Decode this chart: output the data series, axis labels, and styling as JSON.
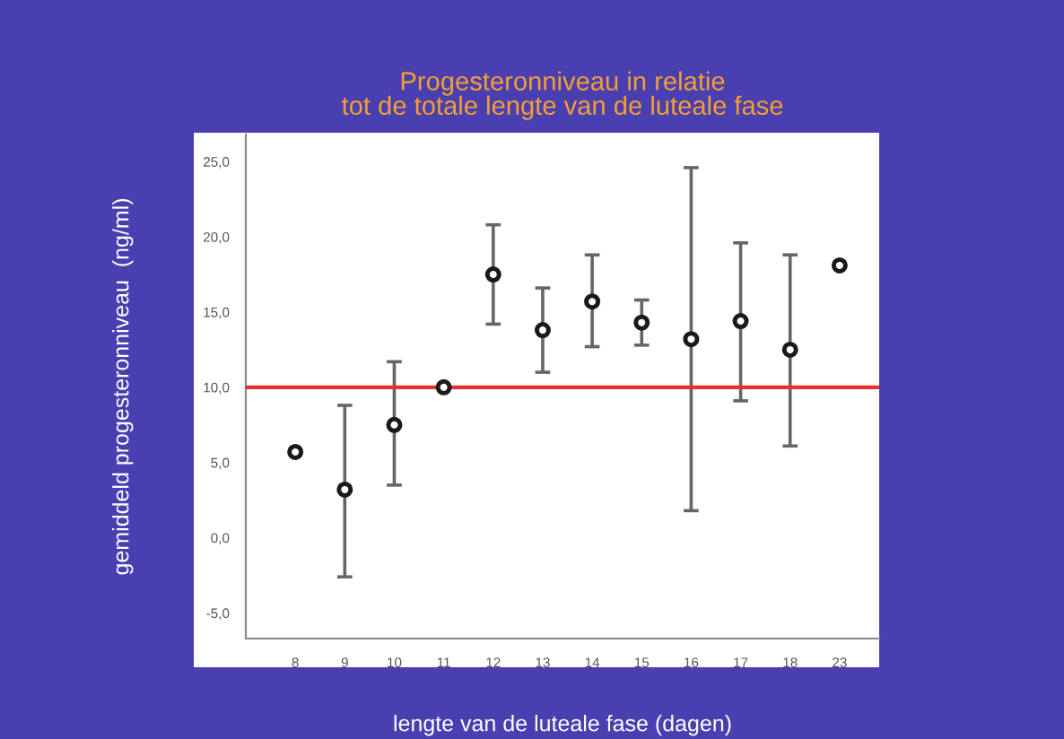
{
  "chart_data": {
    "type": "scatter",
    "title": "Progesteronniveau in relatie\ntot de totale lengte van de luteale fase",
    "xlabel": "lengte van de luteale fase (dagen)",
    "ylabel": "gemiddeld progesteronniveau  (ng/ml)",
    "categories": [
      "8",
      "9",
      "10",
      "11",
      "12",
      "13",
      "14",
      "15",
      "16",
      "17",
      "18",
      "23"
    ],
    "series": [
      {
        "color": "#1a1a1a",
        "values": [
          5.7,
          3.2,
          7.5,
          10.0,
          17.5,
          13.8,
          15.7,
          14.3,
          13.2,
          14.4,
          12.5,
          18.1
        ],
        "errors": [
          null,
          [
            -2.6,
            8.8
          ],
          [
            3.5,
            11.7
          ],
          null,
          [
            14.2,
            20.8
          ],
          [
            11.0,
            16.6
          ],
          [
            12.7,
            18.8
          ],
          [
            12.8,
            15.8
          ],
          [
            1.8,
            24.6
          ],
          [
            9.1,
            19.6
          ],
          [
            6.1,
            18.8
          ],
          null
        ]
      }
    ],
    "ylim": [
      -6.7,
      26.8
    ],
    "yticks": [
      {
        "value": -5,
        "label": "-5,0"
      },
      {
        "value": 0,
        "label": "0,0"
      },
      {
        "value": 5,
        "label": "5,0"
      },
      {
        "value": 10,
        "label": "10,0"
      },
      {
        "value": 15,
        "label": "15,0"
      },
      {
        "value": 20,
        "label": "20,0"
      },
      {
        "value": 25,
        "label": "25,0"
      }
    ],
    "ref_lines": [
      {
        "axis": "y",
        "value": 10,
        "color": "#e8302c"
      }
    ],
    "marker": "circle"
  }
}
